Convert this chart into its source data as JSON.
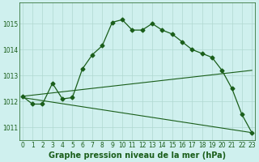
{
  "title": "Graphe pression niveau de la mer (hPa)",
  "background_color": "#cff0ee",
  "line_color": "#1a5e1a",
  "grid_color": "#b0d8d0",
  "x_values": [
    0,
    1,
    2,
    3,
    4,
    5,
    6,
    7,
    8,
    9,
    10,
    11,
    12,
    13,
    14,
    15,
    16,
    17,
    18,
    19,
    20,
    21,
    22,
    23
  ],
  "series1": [
    1012.2,
    1011.9,
    1011.9,
    1012.7,
    1012.1,
    1012.15,
    1013.25,
    1013.8,
    1014.15,
    1015.05,
    1015.15,
    1014.75,
    1014.75,
    1015.0,
    1014.75,
    1014.6,
    1014.3,
    1014.0,
    1013.85,
    1013.7,
    1013.2,
    1012.5,
    1011.5,
    1010.8
  ],
  "line2_x": [
    0,
    23
  ],
  "line2_y": [
    1012.2,
    1013.2
  ],
  "line3_x": [
    0,
    23
  ],
  "line3_y": [
    1012.15,
    1010.8
  ],
  "ylim": [
    1010.5,
    1015.8
  ],
  "yticks": [
    1011,
    1012,
    1013,
    1014,
    1015
  ],
  "xlim": [
    -0.3,
    23.3
  ],
  "marker": "D",
  "markersize": 2.5,
  "linewidth": 0.9,
  "thin_linewidth": 0.8,
  "title_fontsize": 7,
  "tick_fontsize": 5.5
}
